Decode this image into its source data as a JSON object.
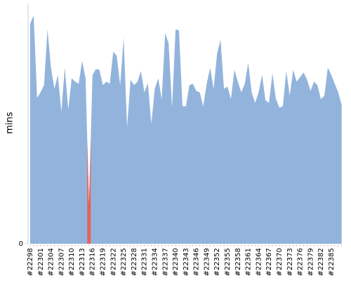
{
  "chart_data": {
    "type": "area",
    "ylabel": "mins",
    "categories": [
      "#22298",
      null,
      null,
      "#22301",
      null,
      null,
      "#22304",
      null,
      null,
      "#22307",
      null,
      null,
      "#22310",
      null,
      null,
      "#22313",
      null,
      null,
      "#22316",
      null,
      null,
      "#22319",
      null,
      null,
      "#22322",
      null,
      null,
      "#22325",
      null,
      null,
      "#22328",
      null,
      null,
      "#22331",
      null,
      null,
      "#22334",
      null,
      null,
      "#22337",
      null,
      null,
      "#22340",
      null,
      null,
      "#22343",
      null,
      null,
      "#22346",
      null,
      null,
      "#22349",
      null,
      null,
      "#22352",
      null,
      null,
      "#22355",
      null,
      null,
      "#22358",
      null,
      null,
      "#22361",
      null,
      null,
      "#22364",
      null,
      null,
      "#22367",
      null,
      null,
      "#22370",
      null,
      null,
      "#22373",
      null,
      null,
      "#22376",
      null,
      null,
      "#22379",
      null,
      null,
      "#22382",
      null,
      null,
      "#22385",
      null,
      null,
      null
    ],
    "series": [
      {
        "color": "#92b4dc",
        "values": [
          64.5,
          66.9,
          42.8,
          44.4,
          46.5,
          62.8,
          51.6,
          45.4,
          49.5,
          38.7,
          51.6,
          39.3,
          48.5,
          47.5,
          46.9,
          53.6,
          48.5,
          11.7,
          49.5,
          51.2,
          51,
          46.5,
          47.5,
          46.9,
          56.3,
          55.1,
          46.5,
          60.4,
          34.2,
          48.1,
          46.5,
          47.5,
          50.6,
          44.4,
          47.1,
          35.2,
          45.4,
          48.5,
          42.4,
          61.8,
          58.7,
          39.9,
          62.8,
          62.5,
          40.3,
          40.3,
          46.5,
          46.9,
          44.8,
          44.4,
          40.3,
          46.9,
          51.6,
          45.4,
          55.7,
          59.8,
          45.4,
          46.1,
          42.4,
          51,
          47.5,
          44.4,
          46.9,
          53,
          44.4,
          41.3,
          44.4,
          49.5,
          42,
          41.3,
          49.9,
          42.4,
          39.9,
          40.3,
          50.6,
          43.4,
          51,
          47.5,
          48.9,
          50.2,
          48.1,
          44.8,
          47.5,
          46.5,
          42.4,
          43.4,
          51.6,
          49.5,
          46.9,
          44.4,
          40.7
        ],
        "colors": [
          "#92b4dc",
          "#92b4dc",
          "#92b4dc",
          "#92b4dc",
          "#92b4dc",
          "#92b4dc",
          "#92b4dc",
          "#92b4dc",
          "#92b4dc",
          "#92b4dc",
          "#92b4dc",
          "#92b4dc",
          "#92b4dc",
          "#92b4dc",
          "#92b4dc",
          "#92b4dc",
          "#92b4dc",
          "#e8605a",
          "#92b4dc",
          "#92b4dc",
          "#92b4dc",
          "#92b4dc",
          "#92b4dc",
          "#92b4dc",
          "#92b4dc",
          "#92b4dc",
          "#92b4dc",
          "#92b4dc",
          "#92b4dc",
          "#92b4dc",
          "#92b4dc",
          "#92b4dc",
          "#92b4dc",
          "#92b4dc",
          "#92b4dc",
          "#92b4dc",
          "#92b4dc",
          "#92b4dc",
          "#92b4dc",
          "#92b4dc",
          "#92b4dc",
          "#92b4dc",
          "#92b4dc",
          "#92b4dc",
          "#92b4dc",
          "#92b4dc",
          "#92b4dc",
          "#92b4dc",
          "#92b4dc",
          "#92b4dc",
          "#92b4dc",
          "#92b4dc",
          "#92b4dc",
          "#92b4dc",
          "#92b4dc",
          "#92b4dc",
          "#92b4dc",
          "#92b4dc",
          "#92b4dc",
          "#92b4dc",
          "#92b4dc",
          "#92b4dc",
          "#92b4dc",
          "#92b4dc",
          "#92b4dc",
          "#92b4dc",
          "#92b4dc",
          "#92b4dc",
          "#92b4dc",
          "#92b4dc",
          "#92b4dc",
          "#92b4dc",
          "#92b4dc",
          "#92b4dc",
          "#92b4dc",
          "#92b4dc",
          "#92b4dc",
          "#92b4dc",
          "#92b4dc",
          "#92b4dc",
          "#92b4dc",
          "#92b4dc",
          "#92b4dc",
          "#92b4dc",
          "#92b4dc",
          "#92b4dc",
          "#92b4dc",
          "#92b4dc",
          "#92b4dc",
          "#92b4dc",
          "#92b4dc"
        ]
      }
    ],
    "ylim": [
      0,
      70
    ],
    "yticks": [
      0
    ],
    "grid": false
  }
}
